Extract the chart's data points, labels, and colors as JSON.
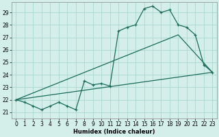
{
  "title": "",
  "xlabel": "Humidex (Indice chaleur)",
  "xlim": [
    -0.5,
    23.5
  ],
  "ylim": [
    20.5,
    29.8
  ],
  "yticks": [
    21,
    22,
    23,
    24,
    25,
    26,
    27,
    28,
    29
  ],
  "xticks": [
    0,
    1,
    2,
    3,
    4,
    5,
    6,
    7,
    8,
    9,
    10,
    11,
    12,
    13,
    14,
    15,
    16,
    17,
    18,
    19,
    20,
    21,
    22,
    23
  ],
  "bg_color": "#d4eeea",
  "grid_color": "#a8d8d0",
  "line_color": "#1a6b5a",
  "main_y": [
    22.0,
    21.8,
    21.5,
    21.2,
    21.5,
    21.8,
    21.5,
    21.2,
    23.5,
    23.2,
    23.3,
    23.1,
    27.5,
    27.8,
    28.0,
    29.3,
    29.5,
    29.0,
    29.2,
    28.0,
    27.8,
    27.2,
    24.8,
    24.2
  ],
  "upper_line_x": [
    0,
    19,
    23
  ],
  "upper_line_y": [
    22.0,
    27.2,
    24.2
  ],
  "lower_line_x": [
    0,
    23
  ],
  "lower_line_y": [
    22.0,
    24.2
  ]
}
